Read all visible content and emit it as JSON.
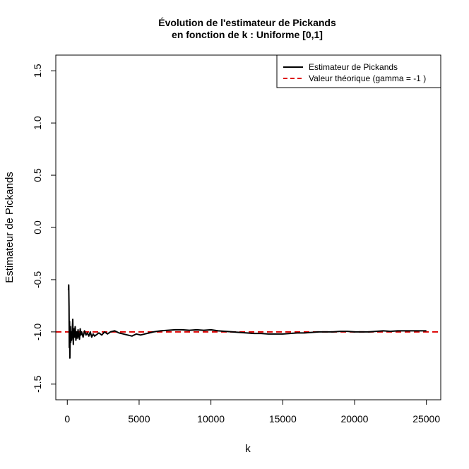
{
  "chart_data": {
    "type": "line",
    "title_line1": "Évolution de l'estimateur de Pickands",
    "title_line2": "en fonction de k : Uniforme [0,1]",
    "xlabel": "k",
    "ylabel": "Estimateur de Pickands",
    "xlim": [
      -800,
      26000
    ],
    "ylim": [
      -1.65,
      1.65
    ],
    "x_ticks": [
      0,
      5000,
      10000,
      15000,
      20000,
      25000
    ],
    "x_tick_labels": [
      "0",
      "5000",
      "10000",
      "15000",
      "20000",
      "25000"
    ],
    "y_ticks": [
      -1.5,
      -1.0,
      -0.5,
      0.0,
      0.5,
      1.0,
      1.5
    ],
    "y_tick_labels": [
      "-1.5",
      "-1.0",
      "-0.5",
      "0.0",
      "0.5",
      "1.0",
      "1.5"
    ],
    "grid": false,
    "legend_position": "top-right",
    "series": [
      {
        "name": "Estimateur de Pickands",
        "color": "#000000",
        "style": "solid",
        "x": [
          80,
          100,
          120,
          140,
          160,
          180,
          200,
          220,
          240,
          270,
          300,
          340,
          380,
          420,
          460,
          500,
          550,
          600,
          650,
          700,
          750,
          800,
          850,
          900,
          950,
          1000,
          1100,
          1200,
          1300,
          1400,
          1500,
          1600,
          1700,
          1800,
          1900,
          2000,
          2200,
          2400,
          2600,
          2800,
          3000,
          3300,
          3600,
          3900,
          4200,
          4500,
          4800,
          5100,
          5400,
          5700,
          6000,
          6500,
          7000,
          7500,
          8000,
          8500,
          9000,
          9500,
          10000,
          10500,
          11000,
          11500,
          12000,
          12500,
          13000,
          13500,
          14000,
          14500,
          15000,
          15500,
          16000,
          16500,
          17000,
          17500,
          18000,
          18500,
          19000,
          19500,
          20000,
          20500,
          21000,
          21500,
          22000,
          22500,
          23000,
          23500,
          24000,
          24500,
          25000
        ],
        "y": [
          -0.6,
          -0.55,
          -0.75,
          -1.15,
          -0.9,
          -1.25,
          -1.05,
          -0.95,
          -1.1,
          -1.0,
          -1.08,
          -1.0,
          -0.88,
          -1.12,
          -0.97,
          -1.05,
          -0.95,
          -1.08,
          -1.0,
          -1.06,
          -0.98,
          -1.04,
          -1.07,
          -0.97,
          -1.03,
          -1.0,
          -1.05,
          -0.99,
          -1.03,
          -1.01,
          -1.04,
          -1.0,
          -1.05,
          -1.02,
          -1.04,
          -1.03,
          -1.01,
          -1.03,
          -1.0,
          -1.02,
          -1.0,
          -0.99,
          -1.01,
          -1.02,
          -1.03,
          -1.04,
          -1.02,
          -1.03,
          -1.02,
          -1.01,
          -1.0,
          -0.99,
          -0.985,
          -0.98,
          -0.98,
          -0.985,
          -0.98,
          -0.985,
          -0.98,
          -0.99,
          -0.995,
          -1.0,
          -1.005,
          -1.01,
          -1.015,
          -1.015,
          -1.02,
          -1.02,
          -1.02,
          -1.015,
          -1.01,
          -1.01,
          -1.005,
          -1.0,
          -1.0,
          -1.0,
          -0.995,
          -0.995,
          -1.0,
          -1.0,
          -1.0,
          -0.995,
          -0.99,
          -0.995,
          -0.99,
          -0.99,
          -0.99,
          -0.99,
          -0.99
        ]
      },
      {
        "name": "Valeur théorique (gamma = -1 )",
        "color": "#dd0000",
        "style": "dashed",
        "hline": -1.0
      }
    ]
  }
}
